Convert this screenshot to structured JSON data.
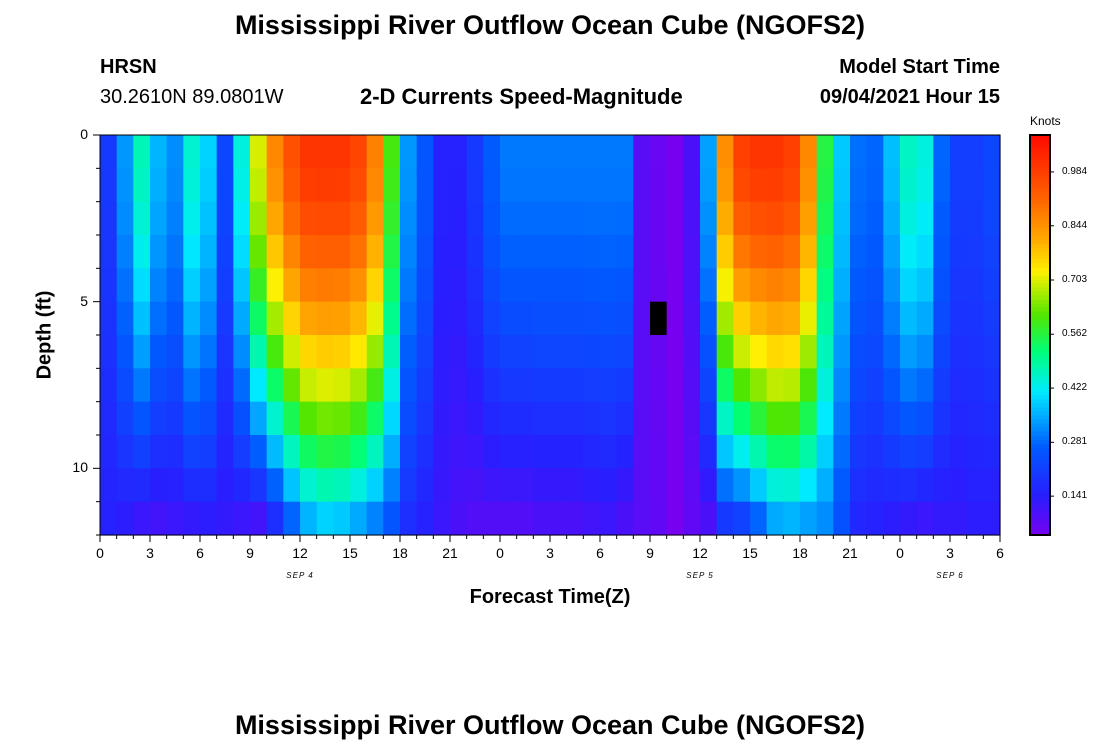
{
  "header": {
    "main_title": "Mississippi River Outflow Ocean Cube (NGOFS2)",
    "station_name": "HRSN",
    "station_coords": "30.2610N  89.0801W",
    "chart_subtitle": "2-D Currents Speed-Magnitude",
    "model_start_label": "Model Start Time",
    "model_start_value": "09/04/2021 Hour 15"
  },
  "footer": {
    "main_title": "Mississippi River Outflow Ocean Cube (NGOFS2)"
  },
  "colorbar": {
    "units": "Knots",
    "min": 0.04,
    "max": 1.08,
    "tick_values": [
      0.141,
      0.281,
      0.422,
      0.562,
      0.703,
      0.844,
      0.984
    ],
    "tick_labels": [
      "0.141",
      "0.281",
      "0.422",
      "0.562",
      "0.703",
      "0.844",
      "0.984"
    ]
  },
  "chart_data": {
    "type": "heatmap",
    "title": "2-D Currents Speed-Magnitude",
    "xlabel": "Forecast Time(Z)",
    "ylabel": "Depth (ft)",
    "x_range_hours": [
      0,
      54
    ],
    "y_range_ft": [
      0,
      12
    ],
    "y_inverted": true,
    "x_tick_labels": [
      "0",
      "3",
      "6",
      "9",
      "12",
      "15",
      "18",
      "21",
      "0",
      "3",
      "6",
      "9",
      "12",
      "15",
      "18",
      "21",
      "0",
      "3",
      "6"
    ],
    "y_ticks": [
      0,
      5,
      10
    ],
    "y_tick_labels": [
      "0",
      "5",
      "10"
    ],
    "day_labels": [
      {
        "hour": 12,
        "text": "SEP 4"
      },
      {
        "hour": 36,
        "text": "SEP 5"
      },
      {
        "hour": 51,
        "text": "SEP 6"
      }
    ],
    "time_columns_hours": [
      0,
      1,
      2,
      3,
      4,
      5,
      6,
      7,
      8,
      9,
      10,
      11,
      12,
      13,
      14,
      15,
      16,
      17,
      18,
      19,
      20,
      21,
      22,
      23,
      24,
      25,
      26,
      27,
      28,
      29,
      30,
      31,
      32,
      33,
      34,
      35,
      36,
      37,
      38,
      39,
      40,
      41,
      42,
      43,
      44,
      45,
      46,
      47,
      48,
      49,
      50,
      51,
      52,
      53
    ],
    "depth_rows_ft": [
      0,
      1,
      2,
      3,
      4,
      5,
      6,
      7,
      8,
      9,
      10,
      11
    ],
    "surface_speed_knots": [
      0.2,
      0.33,
      0.47,
      0.36,
      0.32,
      0.45,
      0.39,
      0.23,
      0.44,
      0.7,
      0.86,
      0.95,
      1.0,
      1.0,
      1.0,
      0.97,
      0.87,
      0.6,
      0.33,
      0.26,
      0.15,
      0.15,
      0.2,
      0.27,
      0.3,
      0.3,
      0.3,
      0.3,
      0.3,
      0.3,
      0.3,
      0.3,
      0.08,
      0.06,
      0.04,
      0.1,
      0.34,
      0.85,
      0.98,
      1.0,
      1.0,
      0.98,
      0.86,
      0.56,
      0.38,
      0.29,
      0.28,
      0.37,
      0.46,
      0.44,
      0.28,
      0.21,
      0.21,
      0.23
    ],
    "bottom_speed_knots": [
      0.15,
      0.14,
      0.12,
      0.11,
      0.12,
      0.13,
      0.14,
      0.13,
      0.12,
      0.11,
      0.18,
      0.28,
      0.36,
      0.39,
      0.38,
      0.35,
      0.31,
      0.26,
      0.18,
      0.15,
      0.12,
      0.1,
      0.09,
      0.09,
      0.09,
      0.09,
      0.1,
      0.1,
      0.1,
      0.11,
      0.12,
      0.1,
      0.08,
      0.07,
      0.04,
      0.07,
      0.1,
      0.2,
      0.22,
      0.28,
      0.35,
      0.36,
      0.34,
      0.32,
      0.25,
      0.16,
      0.15,
      0.14,
      0.13,
      0.12,
      0.13,
      0.13,
      0.14,
      0.14
    ],
    "anomaly_cells": [
      {
        "hour": 33,
        "depth_ft": 5,
        "value": 0.0
      }
    ]
  }
}
